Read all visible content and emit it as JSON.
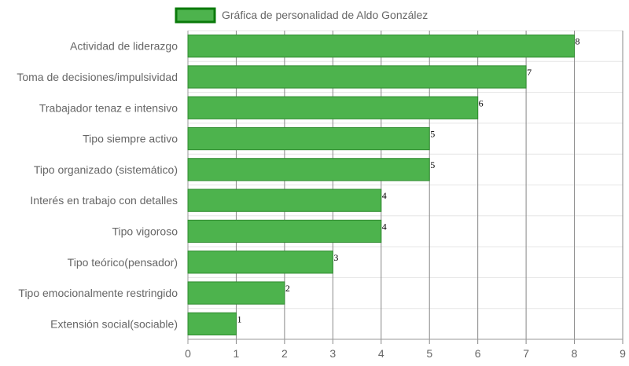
{
  "chart_data": {
    "type": "bar",
    "orientation": "horizontal",
    "categories": [
      "Actividad de liderazgo",
      "Toma de decisiones/impulsividad",
      "Trabajador tenaz e intensivo",
      "Tipo siempre activo",
      "Tipo organizado (sistemático)",
      "Interés en trabajo con detalles",
      "Tipo vigoroso",
      "Tipo teórico(pensador)",
      "Tipo emocionalmente restringido",
      "Extensión social(sociable)"
    ],
    "series": [
      {
        "name": "Gráfica de personalidad de Aldo González",
        "values": [
          8,
          7,
          6,
          5,
          5,
          4,
          4,
          3,
          2,
          1
        ]
      }
    ],
    "xlim": [
      0,
      9
    ],
    "xticks": [
      "0",
      "1",
      "2",
      "3",
      "4",
      "5",
      "6",
      "7",
      "8",
      "9"
    ],
    "grid": true,
    "legend_position": "top",
    "colors": {
      "bar_fill": "#4db34d",
      "bar_border": "#2e8b2e",
      "legend_fill": "#4db34d",
      "legend_border": "#0a7a0a"
    }
  }
}
